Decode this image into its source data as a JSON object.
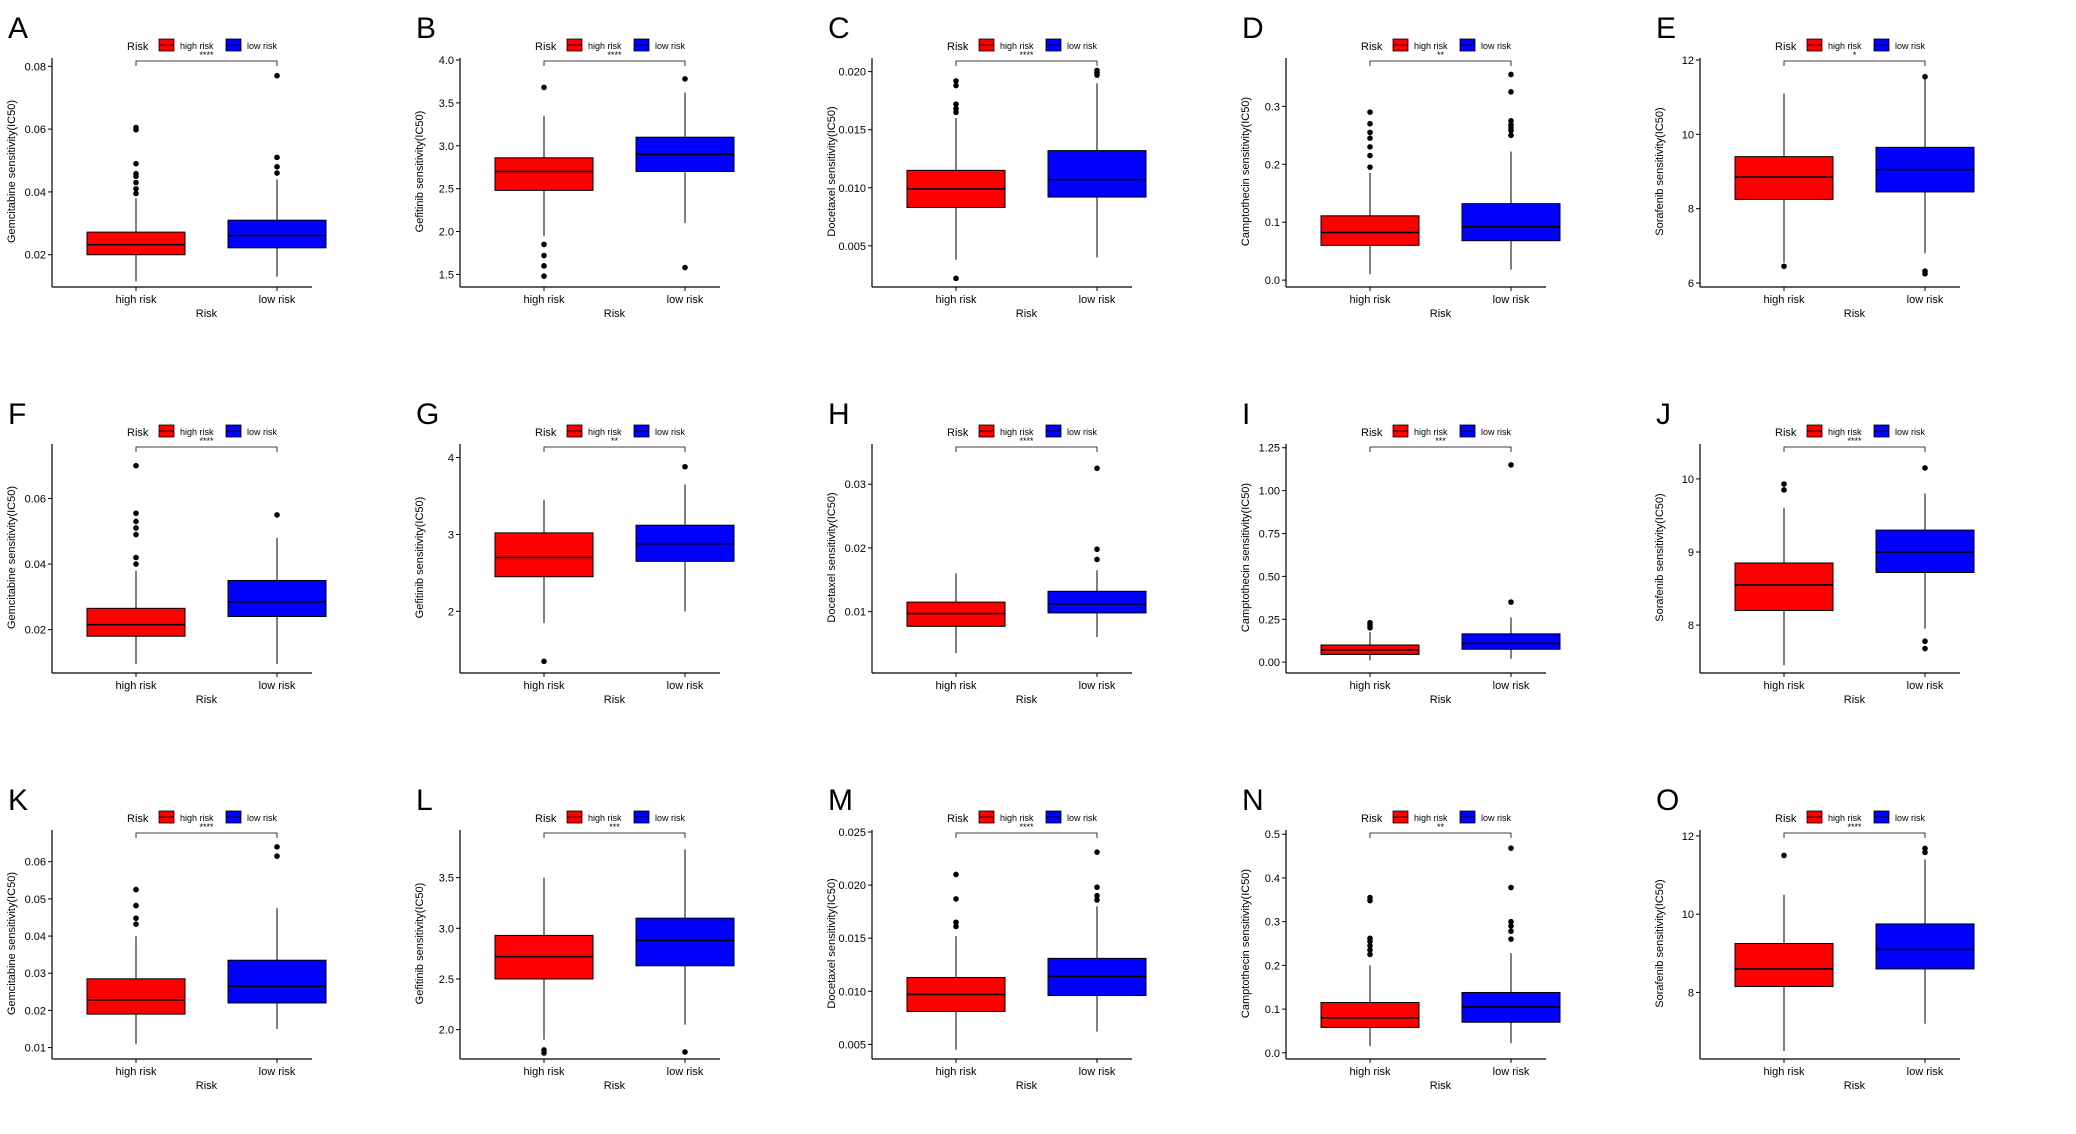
{
  "figure": {
    "legend_title": "Risk",
    "groups": [
      "high risk",
      "low risk"
    ],
    "group_colors": [
      "#ff0000",
      "#0000ff"
    ],
    "xlabel": "Risk"
  },
  "chart_data": [
    {
      "type": "box",
      "letter": "A",
      "ylabel": "Gemcitabine sensitivity(IC50)",
      "ylim": [
        0.011,
        0.082
      ],
      "ticks": [
        0.02,
        0.04,
        0.06,
        0.08
      ],
      "tick_labels": [
        "0.02",
        "0.04",
        "0.06",
        "0.08"
      ],
      "sig": "****",
      "boxes": [
        {
          "q1": 0.02,
          "median": 0.0232,
          "q3": 0.0272,
          "wlo": 0.0115,
          "whi": 0.038,
          "outliers": [
            0.0395,
            0.041,
            0.043,
            0.045,
            0.0458,
            0.049,
            0.0598,
            0.0605
          ]
        },
        {
          "q1": 0.0222,
          "median": 0.0261,
          "q3": 0.031,
          "wlo": 0.013,
          "whi": 0.044,
          "outliers": [
            0.046,
            0.048,
            0.051,
            0.077
          ]
        }
      ]
    },
    {
      "type": "box",
      "letter": "B",
      "ylabel": "Gefitinib sensitivity(IC50)",
      "ylim": [
        1.4,
        4.0
      ],
      "ticks": [
        1.5,
        2.0,
        2.5,
        3.0,
        3.5,
        4.0
      ],
      "tick_labels": [
        "1.5",
        "2.0",
        "2.5",
        "3.0",
        "3.5",
        "4.0"
      ],
      "sig": "****",
      "boxes": [
        {
          "q1": 2.48,
          "median": 2.7,
          "q3": 2.86,
          "wlo": 1.95,
          "whi": 3.35,
          "outliers": [
            1.48,
            1.6,
            1.72,
            1.85,
            3.68
          ]
        },
        {
          "q1": 2.7,
          "median": 2.9,
          "q3": 3.1,
          "wlo": 2.1,
          "whi": 3.62,
          "outliers": [
            1.58,
            3.78
          ]
        }
      ]
    },
    {
      "type": "box",
      "letter": "C",
      "ylabel": "Docetaxel sensitivity(IC50)",
      "ylim": [
        0.0018,
        0.021
      ],
      "ticks": [
        0.005,
        0.01,
        0.015,
        0.02
      ],
      "tick_labels": [
        "0.005",
        "0.010",
        "0.015",
        "0.020"
      ],
      "sig": "****",
      "boxes": [
        {
          "q1": 0.0083,
          "median": 0.0099,
          "q3": 0.0115,
          "wlo": 0.0038,
          "whi": 0.016,
          "outliers": [
            0.0022,
            0.0165,
            0.0168,
            0.0172,
            0.0188,
            0.0192
          ]
        },
        {
          "q1": 0.0092,
          "median": 0.0107,
          "q3": 0.0132,
          "wlo": 0.004,
          "whi": 0.019,
          "outliers": [
            0.0197,
            0.0199,
            0.0201
          ]
        }
      ]
    },
    {
      "type": "box",
      "letter": "D",
      "ylabel": "Camptothecin sensitivity(IC50)",
      "ylim": [
        -0.005,
        0.38
      ],
      "ticks": [
        0.0,
        0.1,
        0.2,
        0.3
      ],
      "tick_labels": [
        "0.0",
        "0.1",
        "0.2",
        "0.3"
      ],
      "sig": "**",
      "boxes": [
        {
          "q1": 0.06,
          "median": 0.082,
          "q3": 0.111,
          "wlo": 0.01,
          "whi": 0.185,
          "outliers": [
            0.195,
            0.215,
            0.23,
            0.245,
            0.255,
            0.27,
            0.29
          ]
        },
        {
          "q1": 0.068,
          "median": 0.092,
          "q3": 0.132,
          "wlo": 0.018,
          "whi": 0.222,
          "outliers": [
            0.25,
            0.258,
            0.263,
            0.268,
            0.275,
            0.325,
            0.355
          ]
        }
      ]
    },
    {
      "type": "box",
      "letter": "E",
      "ylabel": "Sorafenib sensitivity(IC50)",
      "ylim": [
        6.0,
        12.0
      ],
      "ticks": [
        6,
        8,
        10,
        12
      ],
      "tick_labels": [
        "6",
        "8",
        "10",
        "12"
      ],
      "sig": "*",
      "boxes": [
        {
          "q1": 8.25,
          "median": 8.85,
          "q3": 9.4,
          "wlo": 6.55,
          "whi": 11.1,
          "outliers": [
            6.45
          ]
        },
        {
          "q1": 8.45,
          "median": 9.05,
          "q3": 9.65,
          "wlo": 6.8,
          "whi": 11.5,
          "outliers": [
            6.25,
            6.32,
            11.55
          ]
        }
      ]
    },
    {
      "type": "box",
      "letter": "F",
      "ylabel": "Gemcitabine sensitivity(IC50)",
      "ylim": [
        0.008,
        0.076
      ],
      "ticks": [
        0.02,
        0.04,
        0.06
      ],
      "tick_labels": [
        "0.02",
        "0.04",
        "0.06"
      ],
      "sig": "****",
      "boxes": [
        {
          "q1": 0.018,
          "median": 0.0215,
          "q3": 0.0265,
          "wlo": 0.0095,
          "whi": 0.038,
          "outliers": [
            0.04,
            0.042,
            0.049,
            0.051,
            0.053,
            0.0555,
            0.07
          ]
        },
        {
          "q1": 0.024,
          "median": 0.0285,
          "q3": 0.035,
          "wlo": 0.0095,
          "whi": 0.048,
          "outliers": [
            0.055
          ]
        }
      ]
    },
    {
      "type": "box",
      "letter": "G",
      "ylabel": "Gefitinib sensitivity(IC50)",
      "ylim": [
        1.25,
        4.15
      ],
      "ticks": [
        2,
        3,
        4
      ],
      "tick_labels": [
        "2",
        "3",
        "4"
      ],
      "sig": "**",
      "boxes": [
        {
          "q1": 2.45,
          "median": 2.7,
          "q3": 3.02,
          "wlo": 1.85,
          "whi": 3.45,
          "outliers": [
            1.35
          ]
        },
        {
          "q1": 2.65,
          "median": 2.88,
          "q3": 3.12,
          "wlo": 2.0,
          "whi": 3.65,
          "outliers": [
            3.88
          ]
        }
      ]
    },
    {
      "type": "box",
      "letter": "H",
      "ylabel": "Docetaxel sensitivity(IC50)",
      "ylim": [
        0.001,
        0.036
      ],
      "ticks": [
        0.01,
        0.02,
        0.03
      ],
      "tick_labels": [
        "0.01",
        "0.02",
        "0.03"
      ],
      "sig": "****",
      "boxes": [
        {
          "q1": 0.0077,
          "median": 0.0097,
          "q3": 0.0115,
          "wlo": 0.0035,
          "whi": 0.016,
          "outliers": []
        },
        {
          "q1": 0.0098,
          "median": 0.0112,
          "q3": 0.0132,
          "wlo": 0.006,
          "whi": 0.0165,
          "outliers": [
            0.0182,
            0.0198,
            0.0325
          ]
        }
      ]
    },
    {
      "type": "box",
      "letter": "I",
      "ylabel": "Camptothecin sensitivity(IC50)",
      "ylim": [
        -0.04,
        1.26
      ],
      "ticks": [
        0.0,
        0.25,
        0.5,
        0.75,
        1.0,
        1.25
      ],
      "tick_labels": [
        "0.00",
        "0.25",
        "0.50",
        "0.75",
        "1.00",
        "1.25"
      ],
      "sig": "***",
      "boxes": [
        {
          "q1": 0.045,
          "median": 0.072,
          "q3": 0.1,
          "wlo": 0.01,
          "whi": 0.175,
          "outliers": [
            0.2,
            0.215,
            0.23
          ]
        },
        {
          "q1": 0.075,
          "median": 0.11,
          "q3": 0.165,
          "wlo": 0.02,
          "whi": 0.26,
          "outliers": [
            0.35,
            1.15
          ]
        }
      ]
    },
    {
      "type": "box",
      "letter": "J",
      "ylabel": "Sorafenib sensitivity(IC50)",
      "ylim": [
        7.4,
        10.45
      ],
      "ticks": [
        8,
        9,
        10
      ],
      "tick_labels": [
        "8",
        "9",
        "10"
      ],
      "sig": "****",
      "boxes": [
        {
          "q1": 8.2,
          "median": 8.55,
          "q3": 8.85,
          "wlo": 7.45,
          "whi": 9.6,
          "outliers": [
            9.85,
            9.93
          ]
        },
        {
          "q1": 8.72,
          "median": 9.0,
          "q3": 9.3,
          "wlo": 7.95,
          "whi": 9.8,
          "outliers": [
            7.68,
            7.78,
            10.15
          ]
        }
      ]
    },
    {
      "type": "box",
      "letter": "K",
      "ylabel": "Gemcitabine sensitivity(IC50)",
      "ylim": [
        0.008,
        0.068
      ],
      "ticks": [
        0.01,
        0.02,
        0.03,
        0.04,
        0.05,
        0.06
      ],
      "tick_labels": [
        "0.01",
        "0.02",
        "0.03",
        "0.04",
        "0.05",
        "0.06"
      ],
      "sig": "****",
      "boxes": [
        {
          "q1": 0.019,
          "median": 0.0228,
          "q3": 0.0285,
          "wlo": 0.011,
          "whi": 0.04,
          "outliers": [
            0.0432,
            0.0448,
            0.0482,
            0.0525
          ]
        },
        {
          "q1": 0.022,
          "median": 0.0265,
          "q3": 0.0335,
          "wlo": 0.015,
          "whi": 0.0475,
          "outliers": [
            0.0615,
            0.064
          ]
        }
      ]
    },
    {
      "type": "box",
      "letter": "L",
      "ylabel": "Gefitinib sensitivity(IC50)",
      "ylim": [
        1.75,
        3.95
      ],
      "ticks": [
        2.0,
        2.5,
        3.0,
        3.5
      ],
      "tick_labels": [
        "2.0",
        "2.5",
        "3.0",
        "3.5"
      ],
      "sig": "***",
      "boxes": [
        {
          "q1": 2.5,
          "median": 2.72,
          "q3": 2.93,
          "wlo": 1.9,
          "whi": 3.5,
          "outliers": [
            1.77,
            1.8
          ]
        },
        {
          "q1": 2.63,
          "median": 2.88,
          "q3": 3.1,
          "wlo": 2.05,
          "whi": 3.78,
          "outliers": [
            1.78
          ]
        }
      ]
    },
    {
      "type": "box",
      "letter": "M",
      "ylabel": "Docetaxel sensitivity(IC50)",
      "ylim": [
        0.004,
        0.025
      ],
      "ticks": [
        0.005,
        0.01,
        0.015,
        0.02,
        0.025
      ],
      "tick_labels": [
        "0.005",
        "0.010",
        "0.015",
        "0.020",
        "0.025"
      ],
      "sig": "****",
      "boxes": [
        {
          "q1": 0.0081,
          "median": 0.0097,
          "q3": 0.0113,
          "wlo": 0.0045,
          "whi": 0.0152,
          "outliers": [
            0.0161,
            0.0165,
            0.0187,
            0.021
          ]
        },
        {
          "q1": 0.0096,
          "median": 0.0114,
          "q3": 0.0131,
          "wlo": 0.0062,
          "whi": 0.018,
          "outliers": [
            0.0186,
            0.019,
            0.0198,
            0.0231
          ]
        }
      ]
    },
    {
      "type": "box",
      "letter": "N",
      "ylabel": "Camptothecin sensitivity(IC50)",
      "ylim": [
        -0.005,
        0.505
      ],
      "ticks": [
        0.0,
        0.1,
        0.2,
        0.3,
        0.4,
        0.5
      ],
      "tick_labels": [
        "0.0",
        "0.1",
        "0.2",
        "0.3",
        "0.4",
        "0.5"
      ],
      "sig": "**",
      "boxes": [
        {
          "q1": 0.058,
          "median": 0.08,
          "q3": 0.115,
          "wlo": 0.015,
          "whi": 0.2,
          "outliers": [
            0.225,
            0.235,
            0.245,
            0.255,
            0.262,
            0.348,
            0.355
          ]
        },
        {
          "q1": 0.07,
          "median": 0.105,
          "q3": 0.138,
          "wlo": 0.022,
          "whi": 0.228,
          "outliers": [
            0.26,
            0.278,
            0.29,
            0.3,
            0.378,
            0.468
          ]
        }
      ]
    },
    {
      "type": "box",
      "letter": "O",
      "ylabel": "Sorafenib sensitivity(IC50)",
      "ylim": [
        6.4,
        12.1
      ],
      "ticks": [
        8,
        10,
        12
      ],
      "tick_labels": [
        "8",
        "10",
        "12"
      ],
      "sig": "****",
      "boxes": [
        {
          "q1": 8.15,
          "median": 8.6,
          "q3": 9.25,
          "wlo": 6.5,
          "whi": 10.5,
          "outliers": [
            11.5
          ]
        },
        {
          "q1": 8.6,
          "median": 9.1,
          "q3": 9.75,
          "wlo": 7.2,
          "whi": 11.4,
          "outliers": [
            11.58,
            11.68
          ]
        }
      ]
    }
  ]
}
